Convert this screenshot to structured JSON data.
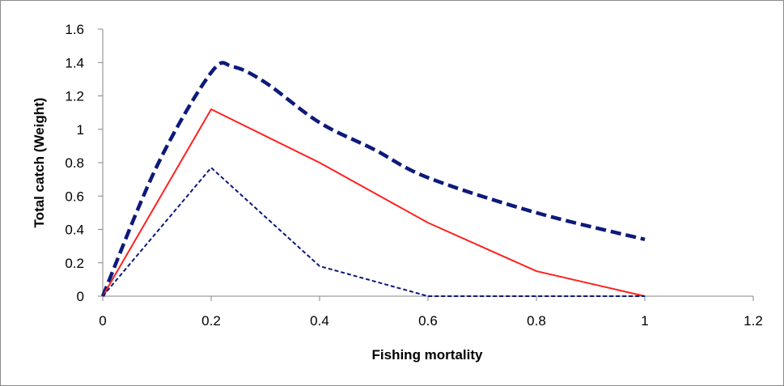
{
  "chart_data": {
    "type": "line",
    "title": "",
    "xlabel": "Fishing mortality",
    "ylabel": "Total catch (Weight)",
    "xlim": [
      0,
      1.2
    ],
    "ylim": [
      0,
      1.6
    ],
    "x_ticks": [
      0,
      0.2,
      0.4,
      0.6,
      0.8,
      1,
      1.2
    ],
    "x_tick_labels": [
      "0",
      "0.2",
      "0.4",
      "0.6",
      "0.8",
      "1",
      "1.2"
    ],
    "y_ticks": [
      0,
      0.2,
      0.4,
      0.6,
      0.8,
      1,
      1.2,
      1.4,
      1.6
    ],
    "y_tick_labels": [
      "0",
      "0.2",
      "0.4",
      "0.6",
      "0.8",
      "1",
      "1.2",
      "1.4",
      "1.6"
    ],
    "grid": false,
    "legend": "none",
    "series": [
      {
        "color": "#0d1a7a",
        "style": "thick-dashed",
        "smooth": true,
        "points": [
          [
            0,
            0
          ],
          [
            0.1,
            0.78
          ],
          [
            0.2,
            1.34
          ],
          [
            0.24,
            1.375
          ],
          [
            0.3,
            1.28
          ],
          [
            0.4,
            1.04
          ],
          [
            0.5,
            0.88
          ],
          [
            0.6,
            0.71
          ],
          [
            0.8,
            0.5
          ],
          [
            1.0,
            0.34
          ]
        ]
      },
      {
        "color": "#ff2020",
        "style": "solid",
        "smooth": false,
        "points": [
          [
            0,
            0
          ],
          [
            0.2,
            1.12
          ],
          [
            0.4,
            0.8
          ],
          [
            0.6,
            0.44
          ],
          [
            0.8,
            0.15
          ],
          [
            1.0,
            0
          ]
        ]
      },
      {
        "color": "#0d1a7a",
        "style": "thin-dashed",
        "smooth": false,
        "points": [
          [
            0,
            0
          ],
          [
            0.2,
            0.77
          ],
          [
            0.4,
            0.18
          ],
          [
            0.6,
            0
          ],
          [
            0.8,
            0
          ],
          [
            1.0,
            0
          ]
        ]
      }
    ]
  }
}
